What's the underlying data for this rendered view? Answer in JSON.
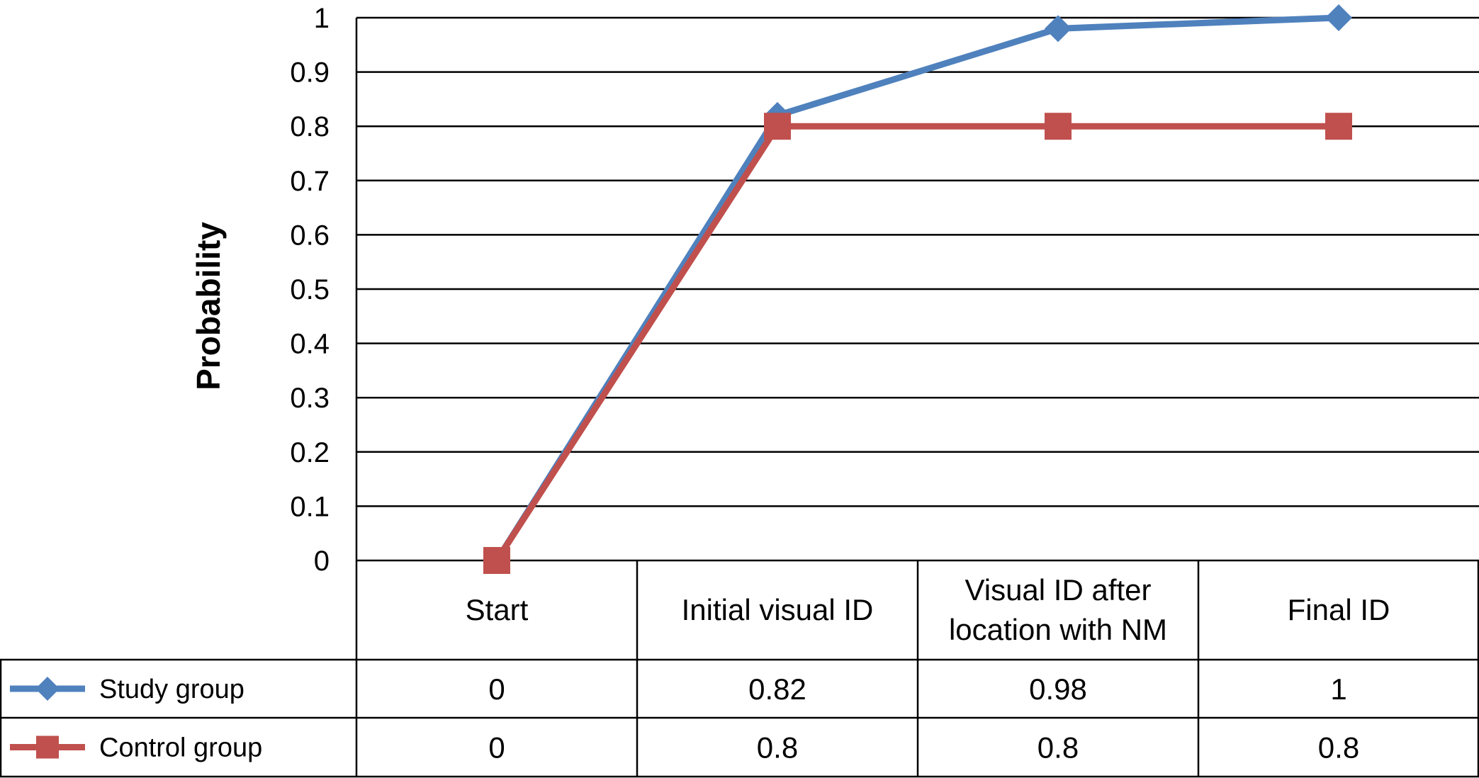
{
  "chart_data": {
    "type": "line",
    "title": "",
    "xlabel": "",
    "ylabel": "Probability",
    "ylim": [
      0,
      1
    ],
    "yticks": [
      "0",
      "0.1",
      "0.2",
      "0.3",
      "0.4",
      "0.5",
      "0.6",
      "0.7",
      "0.8",
      "0.9",
      "1"
    ],
    "grid": true,
    "legend": "data-table-left",
    "categories": [
      [
        "Start"
      ],
      [
        "Initial visual ID"
      ],
      [
        "Visual ID after",
        "location with NM"
      ],
      [
        "Final ID"
      ]
    ],
    "series": [
      {
        "name": "Study group",
        "color": "#4f81bd",
        "marker": "diamond",
        "values": [
          0,
          0.82,
          0.98,
          1
        ],
        "labels": [
          "0",
          "0.82",
          "0.98",
          "1"
        ]
      },
      {
        "name": "Control group",
        "color": "#c0504d",
        "marker": "square",
        "values": [
          0,
          0.8,
          0.8,
          0.8
        ],
        "labels": [
          "0",
          "0.8",
          "0.8",
          "0.8"
        ]
      }
    ]
  }
}
